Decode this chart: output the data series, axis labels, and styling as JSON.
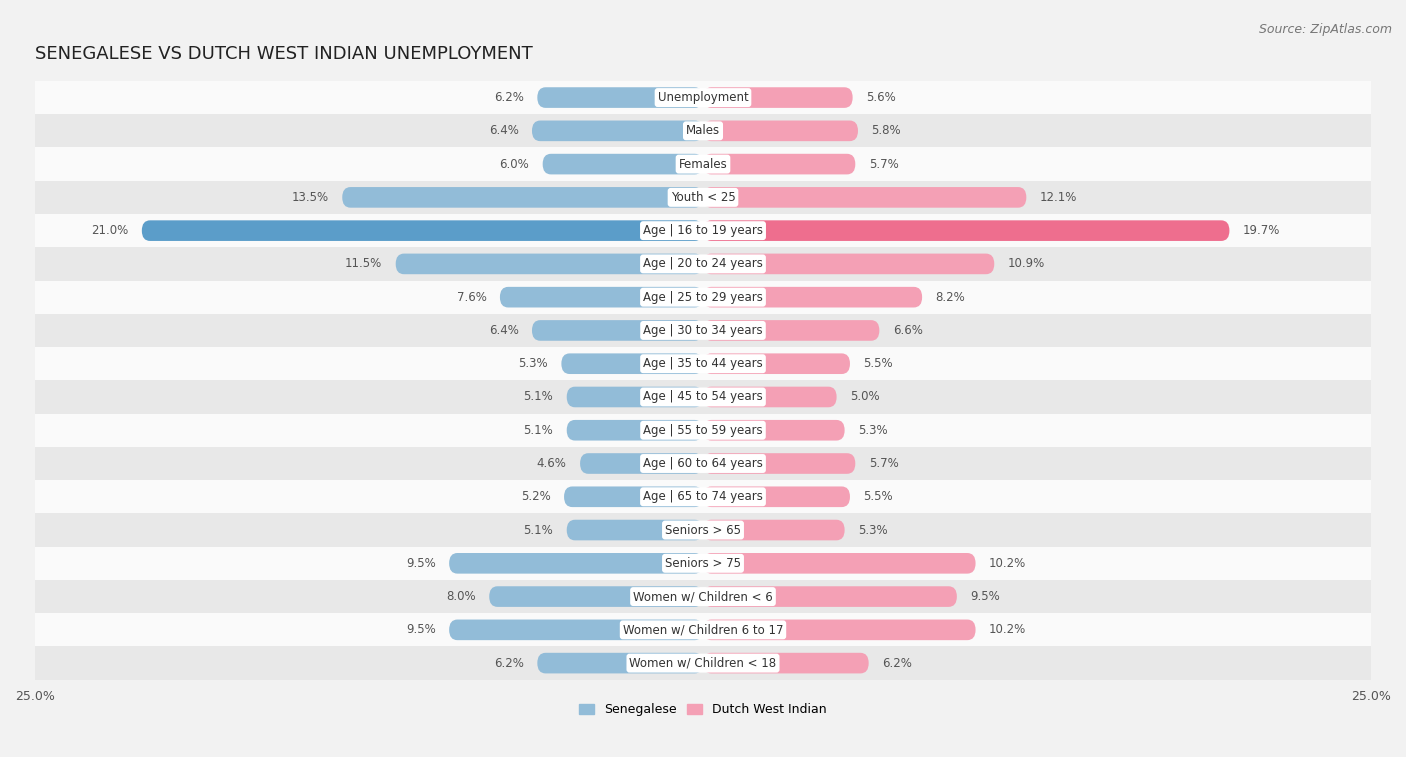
{
  "title": "SENEGALESE VS DUTCH WEST INDIAN UNEMPLOYMENT",
  "source": "Source: ZipAtlas.com",
  "categories": [
    "Unemployment",
    "Males",
    "Females",
    "Youth < 25",
    "Age | 16 to 19 years",
    "Age | 20 to 24 years",
    "Age | 25 to 29 years",
    "Age | 30 to 34 years",
    "Age | 35 to 44 years",
    "Age | 45 to 54 years",
    "Age | 55 to 59 years",
    "Age | 60 to 64 years",
    "Age | 65 to 74 years",
    "Seniors > 65",
    "Seniors > 75",
    "Women w/ Children < 6",
    "Women w/ Children 6 to 17",
    "Women w/ Children < 18"
  ],
  "senegalese": [
    6.2,
    6.4,
    6.0,
    13.5,
    21.0,
    11.5,
    7.6,
    6.4,
    5.3,
    5.1,
    5.1,
    4.6,
    5.2,
    5.1,
    9.5,
    8.0,
    9.5,
    6.2
  ],
  "dutch_west_indian": [
    5.6,
    5.8,
    5.7,
    12.1,
    19.7,
    10.9,
    8.2,
    6.6,
    5.5,
    5.0,
    5.3,
    5.7,
    5.5,
    5.3,
    10.2,
    9.5,
    10.2,
    6.2
  ],
  "senegalese_color": "#92bcd8",
  "dutch_west_indian_color": "#f4a0b5",
  "senegalese_highlight_color": "#5b9dc9",
  "dutch_west_indian_highlight_color": "#ee6e8e",
  "highlight_row": 4,
  "background_color": "#f2f2f2",
  "row_bg_light": "#fafafa",
  "row_bg_dark": "#e8e8e8",
  "xlim": 25.0,
  "title_fontsize": 13,
  "source_fontsize": 9,
  "label_fontsize": 8.5,
  "value_fontsize": 8.5
}
